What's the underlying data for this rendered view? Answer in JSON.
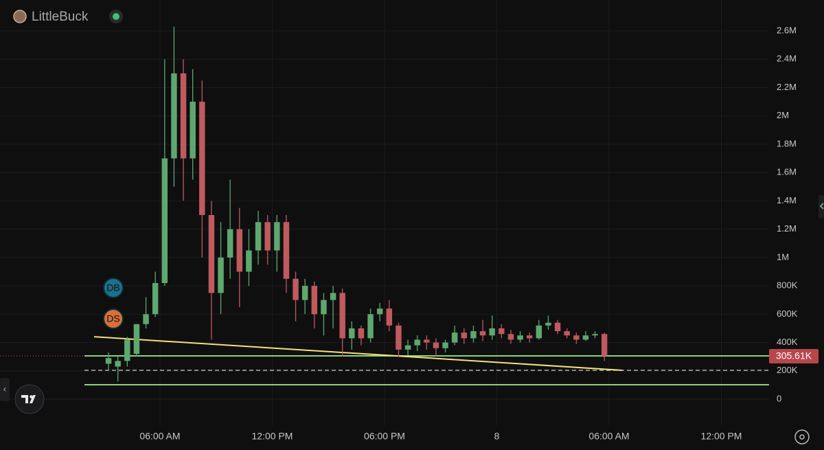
{
  "chart_data": {
    "type": "candlestick",
    "title": "LittleBuck",
    "x": [
      3.25,
      3.75,
      4.25,
      4.75,
      5.25,
      5.75,
      6.25,
      6.75,
      7.25,
      7.75,
      8.25,
      8.75,
      9.25,
      9.75,
      10.25,
      10.75,
      11.25,
      11.75,
      12.25,
      12.75,
      13.25,
      13.75,
      14.25,
      14.75,
      15.25,
      15.75,
      16.25,
      16.75,
      17.25,
      17.75,
      18.25,
      18.75,
      19.25,
      19.75,
      20.25,
      20.75,
      21.25,
      21.75,
      22.25,
      22.75,
      23.25,
      23.75,
      24.25,
      24.75,
      25.25,
      25.75,
      26.25,
      26.75,
      27.25,
      27.75,
      28.25,
      28.75,
      29.25,
      29.75
    ],
    "open": [
      250000,
      230000,
      270000,
      320000,
      530000,
      600000,
      820000,
      1700000,
      2300000,
      1700000,
      2100000,
      1300000,
      750000,
      1000000,
      1200000,
      900000,
      1050000,
      1250000,
      1050000,
      1250000,
      850000,
      700000,
      800000,
      600000,
      700000,
      750000,
      430000,
      500000,
      430000,
      600000,
      640000,
      520000,
      350000,
      380000,
      420000,
      400000,
      360000,
      400000,
      470000,
      430000,
      480000,
      450000,
      500000,
      460000,
      420000,
      450000,
      430000,
      520000,
      540000,
      480000,
      450000,
      420000,
      450000,
      460000
    ],
    "high": [
      330000,
      300000,
      440000,
      530000,
      720000,
      900000,
      2400000,
      2630000,
      2400000,
      2330000,
      2250000,
      1400000,
      1250000,
      1550000,
      1350000,
      1200000,
      1330000,
      1300000,
      1300000,
      1300000,
      900000,
      850000,
      830000,
      750000,
      800000,
      780000,
      550000,
      520000,
      640000,
      680000,
      700000,
      540000,
      420000,
      450000,
      450000,
      430000,
      420000,
      520000,
      500000,
      520000,
      560000,
      590000,
      530000,
      490000,
      480000,
      470000,
      560000,
      590000,
      560000,
      500000,
      470000,
      480000,
      480000,
      470000
    ],
    "low": [
      200000,
      125000,
      230000,
      300000,
      500000,
      580000,
      800000,
      1500000,
      1400000,
      1550000,
      1000000,
      420000,
      600000,
      850000,
      650000,
      800000,
      950000,
      950000,
      900000,
      750000,
      550000,
      600000,
      500000,
      450000,
      500000,
      300000,
      350000,
      380000,
      400000,
      550000,
      480000,
      300000,
      310000,
      340000,
      350000,
      300000,
      330000,
      380000,
      390000,
      400000,
      410000,
      420000,
      430000,
      390000,
      400000,
      400000,
      420000,
      490000,
      460000,
      430000,
      390000,
      410000,
      430000,
      270000
    ],
    "close": [
      290000,
      270000,
      420000,
      530000,
      600000,
      820000,
      1700000,
      2300000,
      1700000,
      2100000,
      1300000,
      750000,
      1000000,
      1200000,
      900000,
      1050000,
      1250000,
      1050000,
      1250000,
      850000,
      700000,
      800000,
      600000,
      700000,
      750000,
      430000,
      500000,
      430000,
      600000,
      640000,
      520000,
      350000,
      380000,
      420000,
      400000,
      360000,
      400000,
      470000,
      430000,
      480000,
      450000,
      500000,
      460000,
      420000,
      450000,
      430000,
      520000,
      540000,
      480000,
      450000,
      420000,
      450000,
      460000,
      305610
    ],
    "up_color": "#5ea86f",
    "down_color": "#bf5a5e",
    "xlim": [
      -2.55,
      38.55
    ],
    "ylim": [
      -189000,
      2818000
    ],
    "xticks": [
      {
        "value": 6,
        "label": "06:00 AM"
      },
      {
        "value": 12,
        "label": "12:00 PM"
      },
      {
        "value": 18,
        "label": "06:00 PM"
      },
      {
        "value": 24,
        "label": "8"
      },
      {
        "value": 30,
        "label": "06:00 AM"
      },
      {
        "value": 36,
        "label": "12:00 PM"
      }
    ],
    "yticks": [
      0,
      {
        "value": 200000,
        "label": "200K"
      },
      {
        "value": 400000,
        "label": "400K"
      },
      {
        "value": 600000,
        "label": "600K"
      },
      {
        "value": 800000,
        "label": "800K"
      },
      {
        "value": 1000000,
        "label": "1M"
      },
      {
        "value": 1200000,
        "label": "1.2M"
      },
      {
        "value": 1400000,
        "label": "1.4M"
      },
      {
        "value": 1600000,
        "label": "1.6M"
      },
      {
        "value": 1800000,
        "label": "1.8M"
      },
      {
        "value": 2000000,
        "label": "2M"
      },
      {
        "value": 2200000,
        "label": "2.2M"
      },
      {
        "value": 2400000,
        "label": "2.4M"
      },
      {
        "value": 2600000,
        "label": "2.6M"
      }
    ],
    "grid": true,
    "last_price": {
      "value": 305610,
      "label": "305.61K"
    },
    "price_lines": [
      {
        "value": 305610,
        "color": "#8fd17a",
        "style": "solid"
      },
      {
        "value": 204000,
        "color": "#cfcfcf",
        "style": "dashed"
      },
      {
        "value": 102000,
        "color": "#8fd17a",
        "style": "solid"
      }
    ],
    "trendline": {
      "x": [
        2.48,
        30.7
      ],
      "values": [
        441000,
        204000
      ],
      "color": "#f2e27a"
    },
    "markers": [
      {
        "label": "DB",
        "color": "#1f6f8b"
      },
      {
        "label": "DS",
        "color": "#d8703a"
      }
    ]
  }
}
